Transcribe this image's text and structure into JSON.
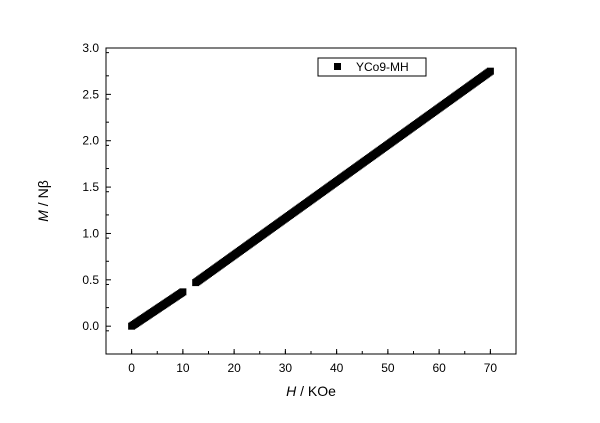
{
  "chart_data": {
    "type": "scatter",
    "title": "",
    "xlabel_italic": "H",
    "xlabel_rest": " / KOe",
    "ylabel_italic": "M",
    "ylabel_rest": " / Nβ",
    "xlim": [
      -5,
      75
    ],
    "ylim": [
      -0.3,
      3.0
    ],
    "xticks": [
      0,
      10,
      20,
      30,
      40,
      50,
      60,
      70
    ],
    "xtick_labels": [
      "0",
      "10",
      "20",
      "30",
      "40",
      "50",
      "60",
      "70"
    ],
    "yticks": [
      0.0,
      0.5,
      1.0,
      1.5,
      2.0,
      2.5,
      3.0
    ],
    "ytick_labels": [
      "0.0",
      "0.5",
      "1.0",
      "1.5",
      "2.0",
      "2.5",
      "3.0"
    ],
    "grid": false,
    "legend_position": "top-right",
    "series": [
      {
        "name": "YCo9-MH",
        "marker": "square",
        "color": "#000000",
        "segments": [
          {
            "x_start": 0.0,
            "x_end": 10.0,
            "y_start": 0.0,
            "y_end": 0.37
          },
          {
            "x_start": 12.5,
            "x_end": 70.0,
            "y_start": 0.47,
            "y_end": 2.75
          }
        ]
      }
    ]
  }
}
